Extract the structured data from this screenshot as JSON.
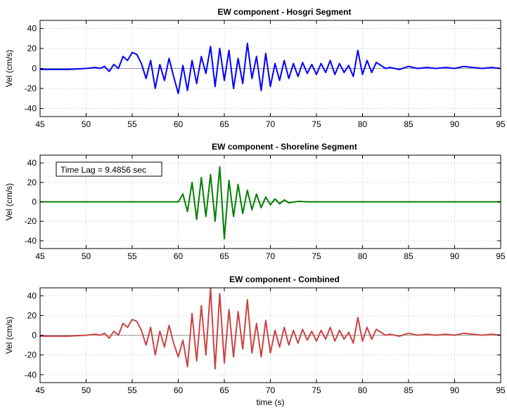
{
  "chart_data": [
    {
      "type": "line",
      "title": "EW component - Hosgri Segment",
      "ylabel": "Vel (cm/s)",
      "xlabel": "",
      "xlim": [
        45,
        95
      ],
      "ylim": [
        -48,
        48
      ],
      "xticks": [
        45,
        50,
        55,
        60,
        65,
        70,
        75,
        80,
        85,
        90,
        95
      ],
      "yticks": [
        -40,
        -20,
        0,
        20,
        40
      ],
      "grid": true,
      "color": "#0000ff",
      "series": [
        {
          "x": [
            45,
            48,
            50,
            51,
            51.5,
            52,
            52.5,
            53,
            53.5,
            54,
            54.5,
            55,
            55.5,
            56,
            56.5,
            57,
            57.5,
            58,
            58.5,
            59,
            59.5,
            60,
            60.5,
            61,
            61.5,
            62,
            62.5,
            63,
            63.5,
            64,
            64.5,
            65,
            65.5,
            66,
            66.5,
            67,
            67.5,
            68,
            68.5,
            69,
            69.5,
            70,
            70.5,
            71,
            71.5,
            72,
            72.5,
            73,
            73.5,
            74,
            74.5,
            75,
            75.5,
            76,
            76.5,
            77,
            77.5,
            78,
            78.5,
            79,
            79.5,
            80,
            80.5,
            81,
            81.5,
            82,
            82.5,
            83,
            84,
            85,
            86,
            87,
            88,
            89,
            90,
            91,
            92,
            93,
            94,
            95
          ],
          "y": [
            -1,
            -1,
            0,
            1,
            0,
            2,
            -3,
            4,
            0,
            12,
            8,
            16,
            14,
            5,
            -10,
            8,
            -20,
            4,
            -12,
            10,
            -8,
            -25,
            3,
            -22,
            8,
            -15,
            12,
            -5,
            22,
            -18,
            20,
            -12,
            18,
            -20,
            10,
            -15,
            25,
            -10,
            12,
            -22,
            15,
            -18,
            5,
            -12,
            8,
            -10,
            5,
            -8,
            6,
            -5,
            4,
            -6,
            5,
            -4,
            8,
            -6,
            5,
            -4,
            3,
            -8,
            18,
            -6,
            8,
            -4,
            6,
            3,
            0,
            1,
            -1,
            2,
            0,
            1,
            0,
            1,
            0,
            2,
            1,
            0,
            1,
            0
          ]
        }
      ]
    },
    {
      "type": "line",
      "title": "EW component - Shoreline Segment",
      "ylabel": "Vel (cm/s)",
      "xlabel": "",
      "xlim": [
        45,
        95
      ],
      "ylim": [
        -48,
        48
      ],
      "xticks": [
        45,
        50,
        55,
        60,
        65,
        70,
        75,
        80,
        85,
        90,
        95
      ],
      "yticks": [
        -40,
        -20,
        0,
        20,
        40
      ],
      "grid": true,
      "color": "#008000",
      "annotation": "Time Lag = 9.4856 sec",
      "series": [
        {
          "x": [
            45,
            58,
            60,
            60.5,
            61,
            61.5,
            62,
            62.5,
            63,
            63.5,
            64,
            64.5,
            65,
            65.5,
            66,
            66.5,
            67,
            67.5,
            68,
            68.5,
            69,
            69.5,
            70,
            70.5,
            71,
            71.5,
            72,
            73,
            74,
            95
          ],
          "y": [
            0,
            0,
            0,
            8,
            -10,
            20,
            -18,
            25,
            -15,
            28,
            -20,
            36,
            -38,
            22,
            -15,
            18,
            -12,
            12,
            -8,
            8,
            -6,
            5,
            -3,
            3,
            -2,
            2,
            -1,
            0.5,
            0,
            0
          ]
        }
      ]
    },
    {
      "type": "line",
      "title": "EW component - Combined",
      "ylabel": "Vel (cm/s)",
      "xlabel": "time (s)",
      "xlim": [
        45,
        95
      ],
      "ylim": [
        -48,
        48
      ],
      "xticks": [
        45,
        50,
        55,
        60,
        65,
        70,
        75,
        80,
        85,
        90,
        95
      ],
      "yticks": [
        -40,
        -20,
        0,
        20,
        40
      ],
      "grid": true,
      "color": "#cc4444",
      "series": [
        {
          "x": [
            45,
            48,
            50,
            51,
            51.5,
            52,
            52.5,
            53,
            53.5,
            54,
            54.5,
            55,
            55.5,
            56,
            56.5,
            57,
            57.5,
            58,
            58.5,
            59,
            59.5,
            60,
            60.5,
            61,
            61.5,
            62,
            62.5,
            63,
            63.5,
            64,
            64.5,
            65,
            65.5,
            66,
            66.5,
            67,
            67.5,
            68,
            68.5,
            69,
            69.5,
            70,
            70.5,
            71,
            71.5,
            72,
            72.5,
            73,
            73.5,
            74,
            74.5,
            75,
            75.5,
            76,
            76.5,
            77,
            77.5,
            78,
            78.5,
            79,
            79.5,
            80,
            80.5,
            81,
            81.5,
            82,
            82.5,
            83,
            84,
            85,
            86,
            87,
            88,
            89,
            90,
            91,
            92,
            93,
            94,
            95
          ],
          "y": [
            -1,
            -1,
            0,
            1,
            0,
            2,
            -3,
            4,
            0,
            12,
            8,
            16,
            14,
            5,
            -10,
            8,
            -20,
            4,
            -12,
            10,
            -8,
            -22,
            -5,
            -32,
            22,
            -26,
            30,
            -20,
            48,
            -34,
            42,
            -28,
            26,
            -22,
            24,
            -14,
            36,
            -18,
            12,
            -22,
            15,
            -18,
            5,
            -12,
            8,
            -10,
            5,
            -8,
            6,
            -5,
            4,
            -6,
            5,
            -4,
            8,
            -6,
            5,
            -4,
            3,
            -8,
            18,
            -6,
            8,
            -4,
            6,
            3,
            0,
            1,
            -1,
            2,
            0,
            1,
            0,
            1,
            0,
            2,
            1,
            0,
            1,
            0
          ]
        }
      ]
    }
  ]
}
